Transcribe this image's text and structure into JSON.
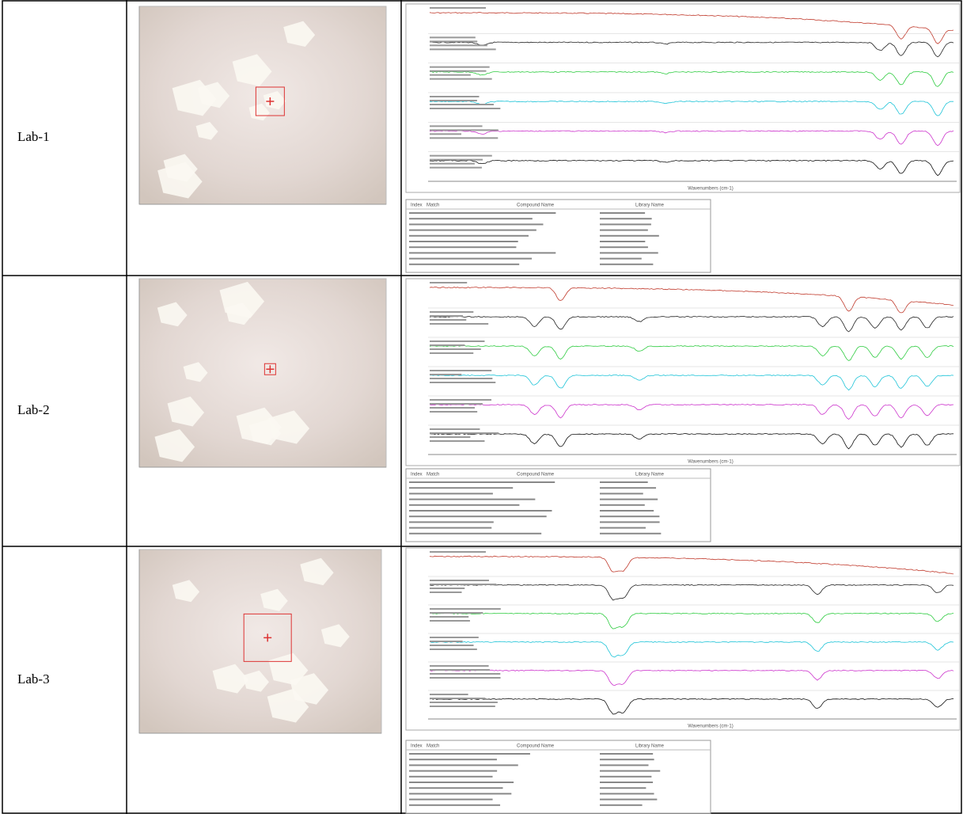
{
  "rows": [
    {
      "label": "Lab-1",
      "spectrum": {
        "x_label": "Wavenumbers (cm-1)",
        "hit_table": {
          "columns": [
            "Index",
            "Match",
            "Compound Name",
            "Library Name"
          ]
        }
      }
    },
    {
      "label": "Lab-2",
      "spectrum": {
        "x_label": "Wavenumbers (cm-1)",
        "hit_table": {
          "columns": [
            "Index",
            "Match",
            "Compound Name",
            "Library Name"
          ]
        }
      }
    },
    {
      "label": "Lab-3",
      "spectrum": {
        "x_label": "Wavenumbers (cm-1)",
        "hit_table": {
          "columns": [
            "Index",
            "Match",
            "Compound Name",
            "Library Name"
          ]
        }
      }
    }
  ]
}
